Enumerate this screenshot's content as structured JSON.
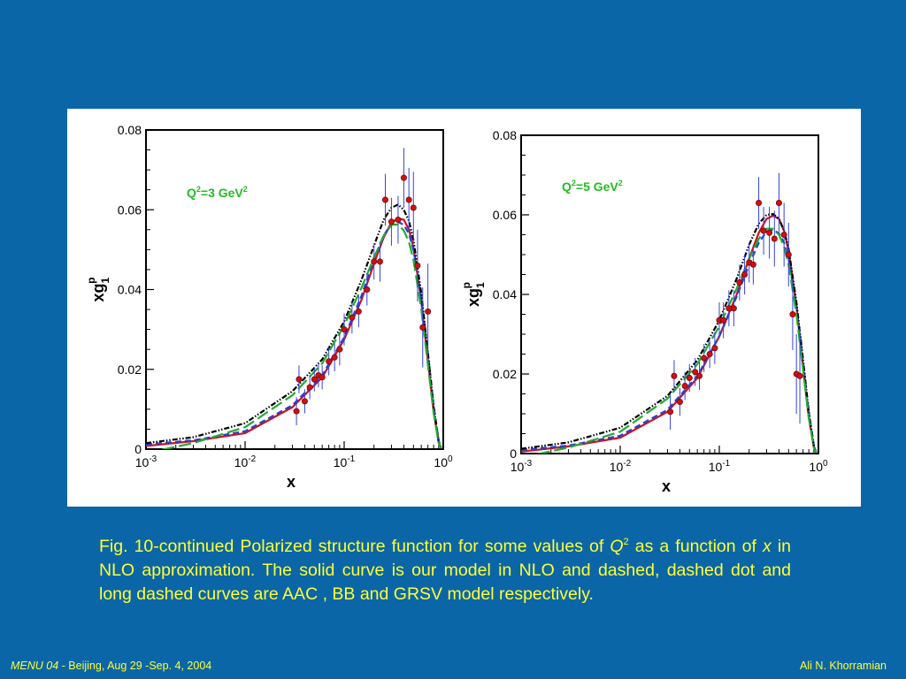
{
  "caption": {
    "prefix": "Fig. 10-continued   Polarized structure function  for some values of ",
    "q_symbol": "Q",
    "q_exp": "2",
    "middle": "  as a function of ",
    "x_symbol": "x",
    "suffix": " in NLO approximation. The solid curve is our model  in NLO and dashed, dashed dot and long dashed curves are AAC , BB and GRSV model respectively."
  },
  "footer": {
    "event": "MENU 04",
    "place_date": " - Beijing, Aug 29 -Sep. 4, 2004",
    "author": "Ali N. Khorramian"
  },
  "colors": {
    "background": "#0b66a8",
    "caption_text": "#ffff33",
    "our_model": "#cc1122",
    "aac": "#2244cc",
    "bb": "#000000",
    "grsv": "#22aa33",
    "data_point": "#cc1111",
    "error_bar": "#3344dd",
    "annotation": "#22bb22"
  },
  "chart_data": [
    {
      "type": "line",
      "annotation": "Q²=3 GeV²",
      "annotation_base": "Q",
      "annotation_exp1": "2",
      "annotation_mid": "=3 GeV",
      "annotation_exp2": "2",
      "xlabel": "x",
      "ylabel_base": "xg",
      "ylabel_sub": "1",
      "ylabel_sup": "p",
      "xscale": "log",
      "xlim": [
        0.001,
        1
      ],
      "ylim": [
        0,
        0.08
      ],
      "xticks": [
        {
          "base": "10",
          "exp": "-3"
        },
        {
          "base": "10",
          "exp": "-2"
        },
        {
          "base": "10",
          "exp": "-1"
        },
        {
          "base": "10",
          "exp": "0"
        }
      ],
      "yticks": [
        "0",
        "0.02",
        "0.04",
        "0.06",
        "0.08"
      ],
      "series": [
        {
          "style": "solid",
          "color_key": "our_model",
          "x": [
            0.001,
            0.003,
            0.01,
            0.03,
            0.06,
            0.1,
            0.15,
            0.2,
            0.25,
            0.3,
            0.35,
            0.4,
            0.45,
            0.5,
            0.6,
            0.7,
            0.8,
            0.9,
            0.95
          ],
          "y": [
            0.0008,
            0.002,
            0.004,
            0.0105,
            0.018,
            0.0275,
            0.0375,
            0.0465,
            0.053,
            0.0568,
            0.0578,
            0.0575,
            0.055,
            0.0505,
            0.037,
            0.022,
            0.0095,
            0.0015,
            0.0003
          ]
        },
        {
          "style": "dashed",
          "color_key": "aac",
          "x": [
            0.001,
            0.003,
            0.01,
            0.03,
            0.06,
            0.1,
            0.15,
            0.2,
            0.25,
            0.3,
            0.35,
            0.4,
            0.45,
            0.5,
            0.6,
            0.7,
            0.8,
            0.9,
            0.95
          ],
          "y": [
            0.0012,
            0.0022,
            0.0045,
            0.011,
            0.0185,
            0.028,
            0.0385,
            0.0475,
            0.0535,
            0.0565,
            0.057,
            0.0562,
            0.054,
            0.05,
            0.038,
            0.024,
            0.011,
            0.002,
            0.0004
          ]
        },
        {
          "style": "dashdotdot",
          "color_key": "bb",
          "x": [
            0.001,
            0.003,
            0.01,
            0.03,
            0.06,
            0.1,
            0.15,
            0.2,
            0.25,
            0.3,
            0.35,
            0.4,
            0.45,
            0.5,
            0.6,
            0.7,
            0.8,
            0.9,
            0.95
          ],
          "y": [
            0.0015,
            0.003,
            0.0065,
            0.0145,
            0.0225,
            0.032,
            0.0425,
            0.051,
            0.0575,
            0.0605,
            0.0613,
            0.06,
            0.0572,
            0.0525,
            0.039,
            0.024,
            0.0105,
            0.0018,
            0.0003
          ]
        },
        {
          "style": "longdash",
          "color_key": "grsv",
          "x": [
            0.001,
            0.003,
            0.01,
            0.03,
            0.06,
            0.1,
            0.15,
            0.2,
            0.25,
            0.3,
            0.35,
            0.4,
            0.45,
            0.5,
            0.6,
            0.7,
            0.8,
            0.9,
            0.95
          ],
          "y": [
            -0.001,
            0.0015,
            0.0055,
            0.0135,
            0.0215,
            0.031,
            0.0405,
            0.048,
            0.0535,
            0.0562,
            0.0563,
            0.0548,
            0.052,
            0.0475,
            0.035,
            0.021,
            0.009,
            0.0015,
            0.0002
          ]
        }
      ],
      "points": [
        {
          "x": 0.033,
          "y": 0.0095,
          "err": 0.0035
        },
        {
          "x": 0.035,
          "y": 0.0175,
          "err": 0.0035
        },
        {
          "x": 0.04,
          "y": 0.012,
          "err": 0.003
        },
        {
          "x": 0.045,
          "y": 0.0155,
          "err": 0.003
        },
        {
          "x": 0.05,
          "y": 0.0175,
          "err": 0.003
        },
        {
          "x": 0.055,
          "y": 0.0185,
          "err": 0.003
        },
        {
          "x": 0.06,
          "y": 0.018,
          "err": 0.003
        },
        {
          "x": 0.07,
          "y": 0.022,
          "err": 0.0035
        },
        {
          "x": 0.08,
          "y": 0.023,
          "err": 0.0035
        },
        {
          "x": 0.09,
          "y": 0.025,
          "err": 0.004
        },
        {
          "x": 0.1,
          "y": 0.03,
          "err": 0.004
        },
        {
          "x": 0.12,
          "y": 0.033,
          "err": 0.004
        },
        {
          "x": 0.14,
          "y": 0.0345,
          "err": 0.004
        },
        {
          "x": 0.17,
          "y": 0.04,
          "err": 0.004
        },
        {
          "x": 0.2,
          "y": 0.047,
          "err": 0.0045
        },
        {
          "x": 0.23,
          "y": 0.047,
          "err": 0.005
        },
        {
          "x": 0.26,
          "y": 0.0625,
          "err": 0.0065
        },
        {
          "x": 0.3,
          "y": 0.057,
          "err": 0.006
        },
        {
          "x": 0.35,
          "y": 0.0575,
          "err": 0.006
        },
        {
          "x": 0.4,
          "y": 0.068,
          "err": 0.0075
        },
        {
          "x": 0.45,
          "y": 0.0625,
          "err": 0.008
        },
        {
          "x": 0.5,
          "y": 0.0605,
          "err": 0.009
        },
        {
          "x": 0.55,
          "y": 0.046,
          "err": 0.009
        },
        {
          "x": 0.62,
          "y": 0.0305,
          "err": 0.01
        },
        {
          "x": 0.7,
          "y": 0.0345,
          "err": 0.012
        }
      ]
    },
    {
      "type": "line",
      "annotation": "Q²=5 GeV²",
      "annotation_base": "Q",
      "annotation_exp1": "2",
      "annotation_mid": "=5 GeV",
      "annotation_exp2": "2",
      "xlabel": "x",
      "ylabel_base": "xg",
      "ylabel_sub": "1",
      "ylabel_sup": "p",
      "xscale": "log",
      "xlim": [
        0.001,
        1
      ],
      "ylim": [
        0,
        0.08
      ],
      "xticks": [
        {
          "base": "10",
          "exp": "-3"
        },
        {
          "base": "10",
          "exp": "-2"
        },
        {
          "base": "10",
          "exp": "-1"
        },
        {
          "base": "10",
          "exp": "0"
        }
      ],
      "yticks": [
        "0",
        "0.02",
        "0.04",
        "0.06",
        "0.08"
      ],
      "series": [
        {
          "style": "solid",
          "color_key": "our_model",
          "x": [
            0.001,
            0.003,
            0.01,
            0.03,
            0.06,
            0.1,
            0.15,
            0.2,
            0.25,
            0.3,
            0.35,
            0.4,
            0.45,
            0.5,
            0.6,
            0.7,
            0.8,
            0.9,
            0.95
          ],
          "y": [
            0.0005,
            0.0018,
            0.004,
            0.0105,
            0.019,
            0.0295,
            0.04,
            0.049,
            0.0555,
            0.059,
            0.0598,
            0.059,
            0.056,
            0.051,
            0.037,
            0.0215,
            0.009,
            0.0015,
            0.0003
          ]
        },
        {
          "style": "dashed",
          "color_key": "aac",
          "x": [
            0.001,
            0.003,
            0.01,
            0.03,
            0.06,
            0.1,
            0.15,
            0.2,
            0.25,
            0.3,
            0.35,
            0.4,
            0.45,
            0.5,
            0.6,
            0.7,
            0.8,
            0.9,
            0.95
          ],
          "y": [
            0.0009,
            0.002,
            0.0045,
            0.011,
            0.0195,
            0.0295,
            0.0395,
            0.0475,
            0.053,
            0.0558,
            0.0563,
            0.0553,
            0.053,
            0.049,
            0.037,
            0.023,
            0.0105,
            0.002,
            0.0004
          ]
        },
        {
          "style": "dashdotdot",
          "color_key": "bb",
          "x": [
            0.001,
            0.003,
            0.01,
            0.03,
            0.06,
            0.1,
            0.15,
            0.2,
            0.25,
            0.3,
            0.35,
            0.4,
            0.45,
            0.5,
            0.6,
            0.7,
            0.8,
            0.9,
            0.95
          ],
          "y": [
            0.0012,
            0.0028,
            0.0065,
            0.0145,
            0.0235,
            0.0335,
            0.044,
            0.0525,
            0.0578,
            0.06,
            0.0602,
            0.059,
            0.056,
            0.0515,
            0.038,
            0.0235,
            0.0105,
            0.0018,
            0.0003
          ]
        },
        {
          "style": "longdash",
          "color_key": "grsv",
          "x": [
            0.001,
            0.003,
            0.01,
            0.03,
            0.06,
            0.1,
            0.15,
            0.2,
            0.25,
            0.3,
            0.35,
            0.4,
            0.45,
            0.5,
            0.6,
            0.7,
            0.8,
            0.9,
            0.95
          ],
          "y": [
            -0.001,
            0.0015,
            0.0055,
            0.0138,
            0.0225,
            0.032,
            0.0415,
            0.049,
            0.054,
            0.0565,
            0.0565,
            0.055,
            0.052,
            0.0475,
            0.035,
            0.021,
            0.009,
            0.0015,
            0.0002
          ]
        }
      ],
      "points": [
        {
          "x": 0.032,
          "y": 0.0105,
          "err": 0.0045
        },
        {
          "x": 0.035,
          "y": 0.0195,
          "err": 0.004
        },
        {
          "x": 0.04,
          "y": 0.013,
          "err": 0.0035
        },
        {
          "x": 0.045,
          "y": 0.017,
          "err": 0.0035
        },
        {
          "x": 0.05,
          "y": 0.019,
          "err": 0.0035
        },
        {
          "x": 0.057,
          "y": 0.0205,
          "err": 0.0035
        },
        {
          "x": 0.063,
          "y": 0.0195,
          "err": 0.0035
        },
        {
          "x": 0.07,
          "y": 0.024,
          "err": 0.0035
        },
        {
          "x": 0.08,
          "y": 0.025,
          "err": 0.0035
        },
        {
          "x": 0.09,
          "y": 0.0265,
          "err": 0.004
        },
        {
          "x": 0.1,
          "y": 0.0335,
          "err": 0.0045
        },
        {
          "x": 0.11,
          "y": 0.0335,
          "err": 0.0045
        },
        {
          "x": 0.125,
          "y": 0.0365,
          "err": 0.0045
        },
        {
          "x": 0.14,
          "y": 0.0365,
          "err": 0.0045
        },
        {
          "x": 0.16,
          "y": 0.043,
          "err": 0.0045
        },
        {
          "x": 0.18,
          "y": 0.045,
          "err": 0.005
        },
        {
          "x": 0.2,
          "y": 0.048,
          "err": 0.005
        },
        {
          "x": 0.22,
          "y": 0.0475,
          "err": 0.005
        },
        {
          "x": 0.25,
          "y": 0.063,
          "err": 0.0065
        },
        {
          "x": 0.28,
          "y": 0.056,
          "err": 0.006
        },
        {
          "x": 0.32,
          "y": 0.0555,
          "err": 0.0065
        },
        {
          "x": 0.36,
          "y": 0.054,
          "err": 0.007
        },
        {
          "x": 0.4,
          "y": 0.063,
          "err": 0.0075
        },
        {
          "x": 0.45,
          "y": 0.055,
          "err": 0.008
        },
        {
          "x": 0.5,
          "y": 0.05,
          "err": 0.008
        },
        {
          "x": 0.55,
          "y": 0.035,
          "err": 0.009
        },
        {
          "x": 0.6,
          "y": 0.02,
          "err": 0.01
        },
        {
          "x": 0.65,
          "y": 0.0195,
          "err": 0.012
        }
      ]
    }
  ]
}
